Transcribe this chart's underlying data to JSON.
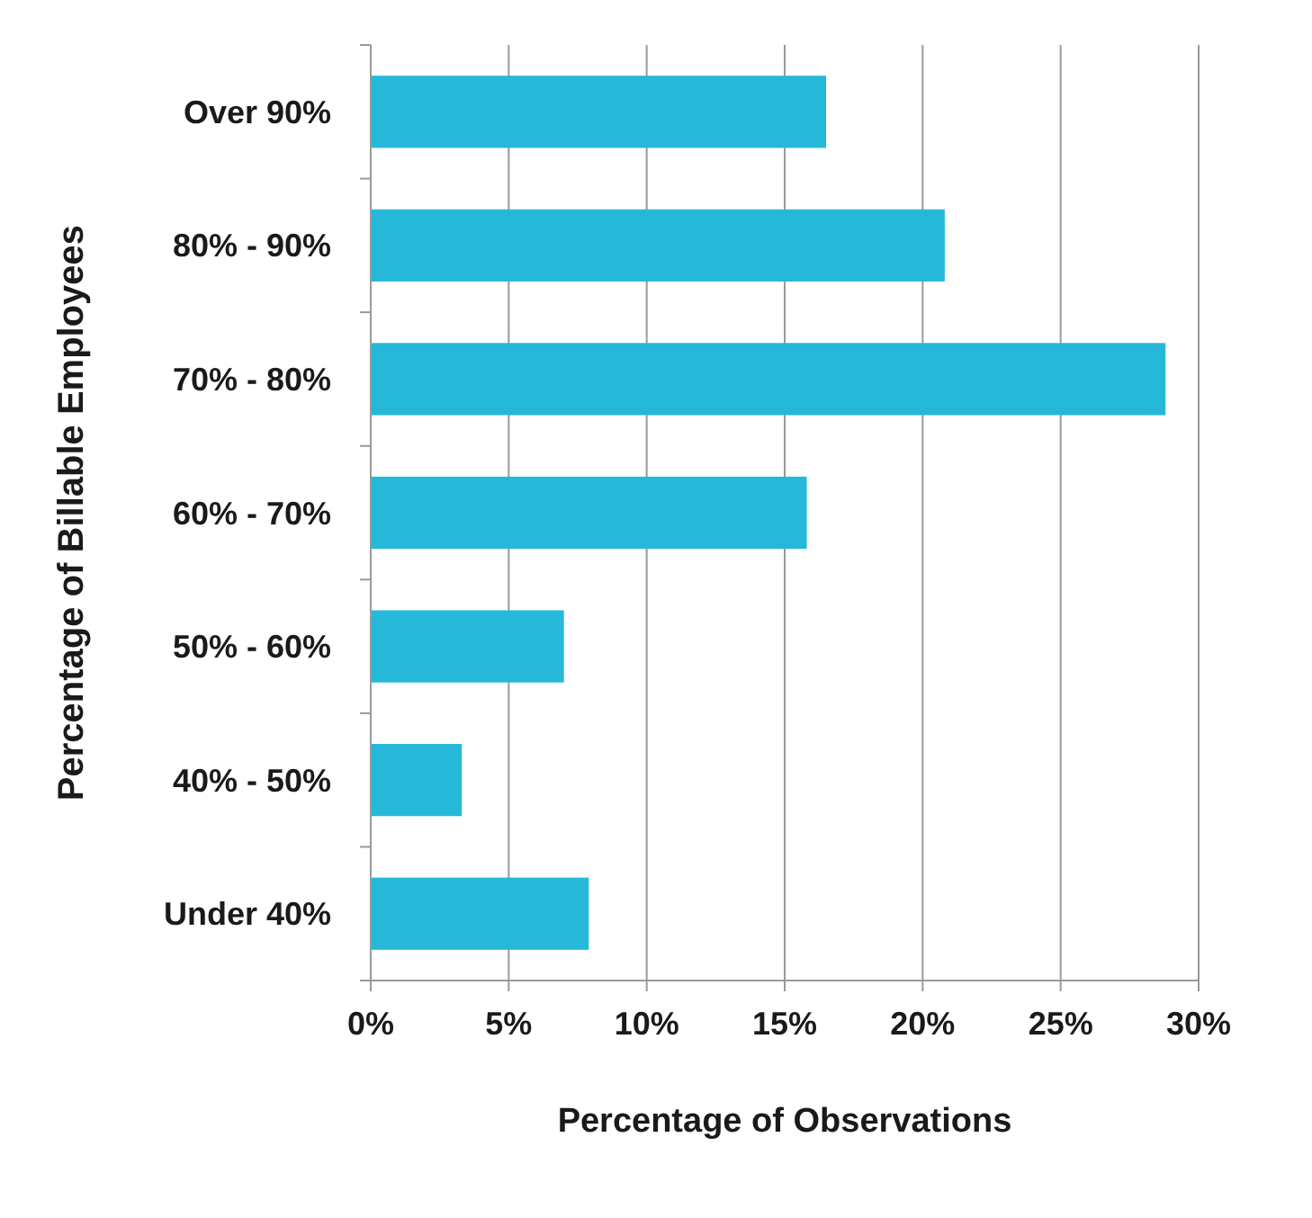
{
  "chart_data": {
    "type": "bar",
    "orientation": "horizontal",
    "xlabel": "Percentage of Observations",
    "ylabel": "Percentage of Billable Employees",
    "categories": [
      "Over 90%",
      "80% - 90%",
      "70% - 80%",
      "60% - 70%",
      "50% - 60%",
      "40% - 50%",
      "Under 40%"
    ],
    "values": [
      16.5,
      20.8,
      28.8,
      15.8,
      7.0,
      3.3,
      7.9
    ],
    "color": "#25b8d9",
    "xlim": [
      0,
      30
    ],
    "xticks": [
      {
        "value": 0,
        "label": "0%"
      },
      {
        "value": 5,
        "label": "5%"
      },
      {
        "value": 10,
        "label": "10%"
      },
      {
        "value": 15,
        "label": "15%"
      },
      {
        "value": 20,
        "label": "20%"
      },
      {
        "value": 25,
        "label": "25%"
      },
      {
        "value": 30,
        "label": "30%"
      }
    ],
    "grid": "x"
  }
}
